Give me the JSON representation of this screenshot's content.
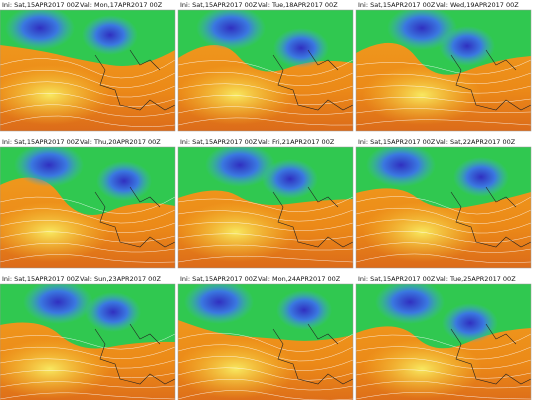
{
  "panels": [
    {
      "init": "Ini: Sat,15APR2017 00Z",
      "valid": "Val: Mon,17APR2017 00Z"
    },
    {
      "init": "Ini: Sat,15APR2017 00Z",
      "valid": "Val: Tue,18APR2017 00Z"
    },
    {
      "init": "Ini: Sat,15APR2017 00Z",
      "valid": "Val: Wed,19APR2017 00Z"
    },
    {
      "init": "Ini: Sat,15APR2017 00Z",
      "valid": "Val: Thu,20APR2017 00Z"
    },
    {
      "init": "Ini: Sat,15APR2017 00Z",
      "valid": "Val: Fri,21APR2017 00Z"
    },
    {
      "init": "Ini: Sat,15APR2017 00Z",
      "valid": "Val: Sat,22APR2017 00Z"
    },
    {
      "init": "Ini: Sat,15APR2017 00Z",
      "valid": "Val: Sun,23APR2017 00Z"
    },
    {
      "init": "Ini: Sat,15APR2017 00Z",
      "valid": "Val: Mon,24APR2017 00Z"
    },
    {
      "init": "Ini: Sat,15APR2017 00Z",
      "valid": "Val: Tue,25APR2017 00Z"
    }
  ]
}
